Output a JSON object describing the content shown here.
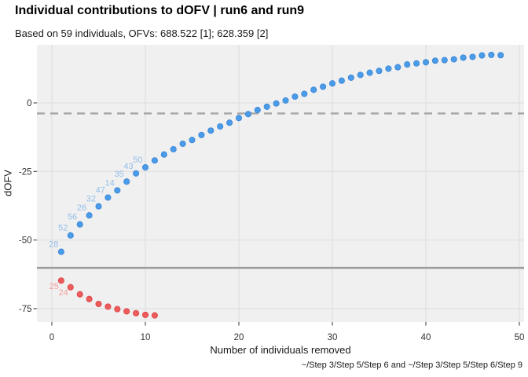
{
  "figure": {
    "title": "Individual contributions to dOFV | run6 and run9",
    "subtitle": "Based on 59 individuals, OFVs: 688.522 [1]; 628.359 [2]",
    "caption": "~/Step 3/Step 5/Step 6 and ~/Step 3/Step 5/Step 6/Step 9"
  },
  "chart_data": {
    "type": "scatter",
    "title": "Individual contributions to dOFV | run6 and run9",
    "subtitle": "Based on 59 individuals, OFVs: 688.522 [1]; 628.359 [2]",
    "caption": "~/Step 3/Step 5/Step 6 and ~/Step 3/Step 5/Step 6/Step 9",
    "xlabel": "Number of individuals removed",
    "ylabel": "dOFV",
    "xlim": [
      -1.6,
      50.5
    ],
    "ylim": [
      -79.9,
      21.2
    ],
    "x_ticks": [
      0,
      10,
      20,
      30,
      40,
      50
    ],
    "y_ticks": [
      0,
      -25,
      -50,
      -75
    ],
    "grid": "major-only",
    "legend_position": "none",
    "reference_lines": [
      {
        "y": -3.84,
        "style": "dashed"
      },
      {
        "y": -60.16,
        "style": "solid"
      }
    ],
    "colors": {
      "panel_bg": "#F0F0F0",
      "grid": "#E1E1E1",
      "tick": "#333333",
      "axis_text": "#333333",
      "ref_dashed": "#A6A6A6",
      "ref_solid": "#9A9A9A"
    },
    "series": [
      {
        "name": "blue",
        "color": "#4B9CE8",
        "stroke": "#3D88D8",
        "label_color": "#94BEE9",
        "label_position": "above-left",
        "point_labels": [
          "28",
          "52",
          "56",
          "26",
          "32",
          "47",
          "14",
          "35",
          "43",
          "50"
        ],
        "x": [
          1,
          2,
          3,
          4,
          5,
          6,
          7,
          8,
          9,
          10,
          11,
          12,
          13,
          14,
          15,
          16,
          17,
          18,
          19,
          20,
          21,
          22,
          23,
          24,
          25,
          26,
          27,
          28,
          29,
          30,
          31,
          32,
          33,
          34,
          35,
          36,
          37,
          38,
          39,
          40,
          41,
          42,
          43,
          44,
          45,
          46,
          47,
          48
        ],
        "y": [
          -54.3,
          -48.3,
          -44.3,
          -41.0,
          -37.7,
          -34.5,
          -31.9,
          -28.7,
          -25.7,
          -23.5,
          -21.0,
          -18.8,
          -16.9,
          -14.9,
          -13.5,
          -11.7,
          -10.1,
          -8.6,
          -7.2,
          -5.5,
          -4.1,
          -2.6,
          -1.4,
          -0.2,
          0.9,
          2.3,
          3.3,
          4.8,
          5.9,
          7.1,
          8.1,
          9.2,
          10.2,
          11.0,
          11.7,
          12.5,
          13.0,
          14.0,
          14.4,
          14.8,
          15.4,
          15.6,
          15.9,
          16.5,
          16.8,
          17.3,
          17.5,
          17.4
        ]
      },
      {
        "name": "red",
        "color": "#ED5C5C",
        "stroke": "#DE4747",
        "label_color": "#F59E9E",
        "label_position": "below-left",
        "point_labels": [
          "25",
          "24"
        ],
        "x": [
          1,
          2,
          3,
          4,
          5,
          6,
          7,
          8,
          9,
          10,
          11
        ],
        "y": [
          -64.8,
          -67.2,
          -69.8,
          -71.5,
          -73.3,
          -74.3,
          -75.2,
          -76.0,
          -76.7,
          -77.3,
          -77.5
        ]
      }
    ]
  }
}
